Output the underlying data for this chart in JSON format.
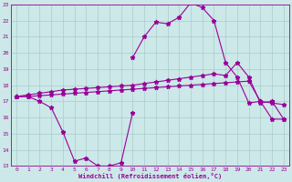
{
  "xlabel": "Windchill (Refroidissement éolien,°C)",
  "background_color": "#cce8e8",
  "line_color": "#990099",
  "grid_color": "#aacccc",
  "line1_x": [
    0,
    1,
    2,
    3,
    4,
    5,
    6,
    7,
    8,
    9,
    10
  ],
  "line1_y": [
    17.3,
    17.3,
    17.0,
    16.6,
    15.1,
    13.3,
    13.5,
    13.0,
    13.0,
    13.2,
    16.3
  ],
  "line2_x": [
    0,
    10,
    11,
    12,
    13,
    14,
    15,
    16,
    17,
    18,
    19,
    20,
    21,
    22,
    23
  ],
  "line2_y": [
    17.3,
    19.7,
    21.0,
    21.9,
    21.8,
    22.2,
    23.1,
    22.8,
    22.0,
    19.4,
    18.5,
    16.9,
    17.0,
    15.9,
    15.9
  ],
  "line3_x": [
    0,
    1,
    2,
    3,
    4,
    5,
    6,
    7,
    8,
    9,
    10,
    11,
    12,
    13,
    14,
    15,
    16,
    17,
    18,
    19,
    20,
    21,
    22,
    23
  ],
  "line3_y": [
    17.3,
    17.4,
    17.5,
    17.6,
    17.7,
    17.75,
    17.8,
    17.85,
    17.9,
    17.95,
    18.0,
    18.1,
    18.2,
    18.3,
    18.4,
    18.5,
    18.6,
    18.7,
    18.6,
    19.4,
    18.5,
    16.9,
    17.0,
    15.9
  ],
  "line4_x": [
    0,
    1,
    2,
    3,
    4,
    5,
    6,
    7,
    8,
    9,
    10,
    11,
    12,
    13,
    14,
    15,
    16,
    17,
    18,
    19,
    20,
    21,
    22,
    23
  ],
  "line4_y": [
    17.3,
    17.3,
    17.35,
    17.4,
    17.45,
    17.5,
    17.55,
    17.6,
    17.65,
    17.7,
    17.75,
    17.8,
    17.85,
    17.9,
    17.95,
    18.0,
    18.05,
    18.1,
    18.15,
    18.2,
    18.25,
    17.0,
    16.9,
    16.8
  ],
  "ylim": [
    13,
    23
  ],
  "xlim": [
    -0.5,
    23.5
  ],
  "yticks": [
    13,
    14,
    15,
    16,
    17,
    18,
    19,
    20,
    21,
    22,
    23
  ],
  "xticks": [
    0,
    1,
    2,
    3,
    4,
    5,
    6,
    7,
    8,
    9,
    10,
    11,
    12,
    13,
    14,
    15,
    16,
    17,
    18,
    19,
    20,
    21,
    22,
    23
  ]
}
